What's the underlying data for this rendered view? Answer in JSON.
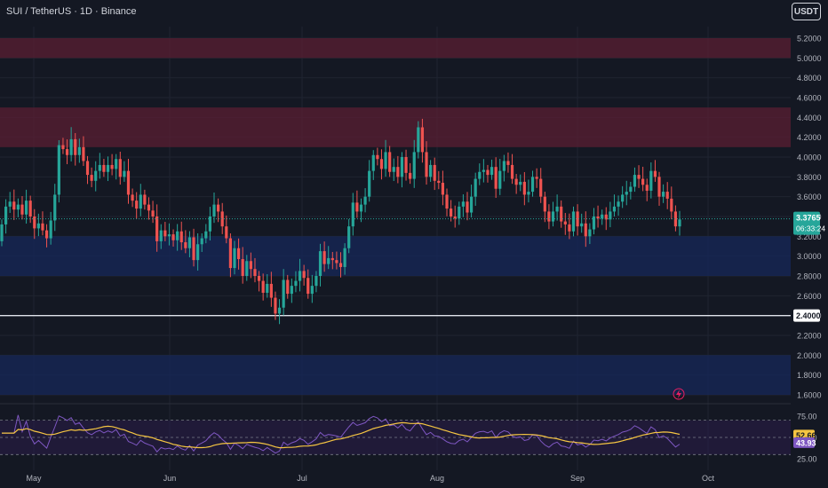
{
  "header": {
    "title": "SUI / TetherUS · 1D · Binance",
    "currency_button": "USDT"
  },
  "colors": {
    "up": "#26a69a",
    "down": "#ef5350",
    "background": "#141823",
    "red_zone": "#5a1e33",
    "blue_zone": "#15275a",
    "rsi_line": "#7e57c2",
    "rsi_ma": "#f5c542"
  },
  "badges": {
    "last_price": "3.3765",
    "countdown": "06:33:24",
    "level": "2.4000",
    "rsi_ma": "52.66",
    "rsi": "43.93"
  },
  "icons": {
    "alert": "lightning-icon"
  },
  "chart_data": [
    {
      "type": "candlestick",
      "title": "SUI / TetherUS · 1D · Binance",
      "y_axis": {
        "ticks": [
          "5.2000",
          "5.0000",
          "4.8000",
          "4.6000",
          "4.4000",
          "4.2000",
          "4.0000",
          "3.8000",
          "3.6000",
          "3.4000",
          "3.2000",
          "3.0000",
          "2.8000",
          "2.6000",
          "2.4000",
          "2.2000",
          "2.0000",
          "1.8000",
          "1.6000"
        ],
        "range": [
          1.6,
          5.3
        ]
      },
      "x_axis": {
        "ticks": [
          "May",
          "Jun",
          "Jul",
          "Aug",
          "Sep",
          "Oct"
        ]
      },
      "zones": [
        {
          "kind": "resistance",
          "from": 5.0,
          "to": 5.2
        },
        {
          "kind": "resistance",
          "from": 4.1,
          "to": 4.5
        },
        {
          "kind": "support",
          "from": 2.8,
          "to": 3.2
        },
        {
          "kind": "support",
          "from": 1.6,
          "to": 2.0
        }
      ],
      "horizontal_line": 2.4,
      "last_price": 3.3765,
      "closes": [
        3.32,
        3.5,
        3.55,
        3.47,
        3.52,
        3.42,
        3.56,
        3.4,
        3.28,
        3.33,
        3.26,
        3.18,
        3.36,
        3.62,
        4.12,
        4.08,
        4.02,
        4.18,
        4.02,
        4.1,
        3.96,
        3.82,
        3.76,
        3.86,
        3.92,
        3.85,
        3.92,
        3.88,
        3.98,
        3.8,
        3.86,
        3.62,
        3.56,
        3.48,
        3.62,
        3.52,
        3.46,
        3.4,
        3.15,
        3.26,
        3.2,
        3.22,
        3.16,
        3.25,
        3.14,
        3.08,
        3.19,
        2.96,
        3.12,
        3.18,
        3.25,
        3.4,
        3.52,
        3.45,
        3.3,
        3.18,
        2.88,
        3.08,
        2.97,
        2.8,
        2.95,
        2.87,
        2.8,
        2.75,
        2.63,
        2.72,
        2.58,
        2.42,
        2.48,
        2.76,
        2.62,
        2.7,
        2.75,
        2.85,
        2.78,
        2.62,
        2.7,
        2.8,
        3.05,
        2.92,
        2.98,
        2.96,
        2.93,
        2.89,
        3.08,
        3.3,
        3.54,
        3.45,
        3.52,
        3.6,
        3.86,
        4.02,
        3.98,
        3.88,
        4.05,
        3.85,
        3.9,
        3.8,
        4.0,
        3.84,
        3.78,
        4.05,
        4.3,
        4.05,
        3.8,
        3.92,
        3.76,
        3.74,
        3.62,
        3.48,
        3.4,
        3.38,
        3.5,
        3.55,
        3.44,
        3.6,
        3.78,
        3.85,
        3.87,
        3.82,
        3.9,
        3.68,
        3.86,
        3.96,
        3.92,
        3.78,
        3.72,
        3.75,
        3.62,
        3.65,
        3.8,
        3.78,
        3.6,
        3.45,
        3.35,
        3.45,
        3.5,
        3.35,
        3.32,
        3.25,
        3.45,
        3.3,
        3.33,
        3.2,
        3.27,
        3.4,
        3.38,
        3.42,
        3.37,
        3.45,
        3.5,
        3.55,
        3.62,
        3.65,
        3.7,
        3.82,
        3.78,
        3.72,
        3.66,
        3.86,
        3.8,
        3.6,
        3.65,
        3.58,
        3.45,
        3.3,
        3.37
      ],
      "rsi": {
        "ticks": [
          "75.00",
          "50.00",
          "25.00"
        ],
        "range": [
          20,
          82
        ],
        "bands": [
          70,
          50,
          30
        ],
        "rsi_value": 43.93,
        "ma_value": 52.66
      }
    }
  ]
}
